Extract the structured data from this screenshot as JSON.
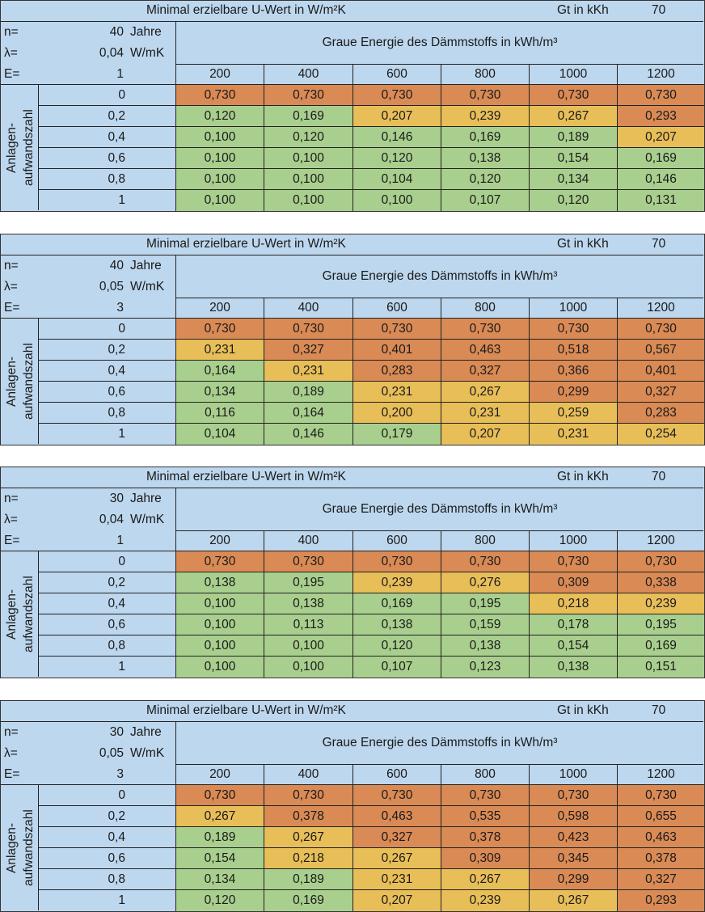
{
  "colors": {
    "O": "#d98a55",
    "Y": "#e8be59",
    "G": "#a9cf8e",
    "header": "#bdd7ee"
  },
  "tables": [
    {
      "title": "Minimal erzielbare U-Wert in W/m²K",
      "gt_label": "Gt in kKh",
      "gt_value": "70",
      "params": [
        {
          "label": "n=",
          "value": "40",
          "unit": "Jahre"
        },
        {
          "label": "λ=",
          "value": "0,04",
          "unit": "W/mK"
        },
        {
          "label": "E=",
          "value": "1",
          "unit": ""
        }
      ],
      "column_group": "Graue Energie des Dämmstoffs in kWh/m³",
      "row_group": [
        "Anlagen-",
        "aufwandszahl"
      ],
      "columns": [
        "200",
        "400",
        "600",
        "800",
        "1000",
        "1200"
      ],
      "rows": [
        {
          "label": "0",
          "values": [
            "0,730",
            "0,730",
            "0,730",
            "0,730",
            "0,730",
            "0,730"
          ],
          "colors": [
            "O",
            "O",
            "O",
            "O",
            "O",
            "O"
          ]
        },
        {
          "label": "0,2",
          "values": [
            "0,120",
            "0,169",
            "0,207",
            "0,239",
            "0,267",
            "0,293"
          ],
          "colors": [
            "G",
            "G",
            "Y",
            "Y",
            "Y",
            "O"
          ]
        },
        {
          "label": "0,4",
          "values": [
            "0,100",
            "0,120",
            "0,146",
            "0,169",
            "0,189",
            "0,207"
          ],
          "colors": [
            "G",
            "G",
            "G",
            "G",
            "G",
            "Y"
          ]
        },
        {
          "label": "0,6",
          "values": [
            "0,100",
            "0,100",
            "0,120",
            "0,138",
            "0,154",
            "0,169"
          ],
          "colors": [
            "G",
            "G",
            "G",
            "G",
            "G",
            "G"
          ]
        },
        {
          "label": "0,8",
          "values": [
            "0,100",
            "0,100",
            "0,104",
            "0,120",
            "0,134",
            "0,146"
          ],
          "colors": [
            "G",
            "G",
            "G",
            "G",
            "G",
            "G"
          ]
        },
        {
          "label": "1",
          "values": [
            "0,100",
            "0,100",
            "0,100",
            "0,107",
            "0,120",
            "0,131"
          ],
          "colors": [
            "G",
            "G",
            "G",
            "G",
            "G",
            "G"
          ]
        }
      ]
    },
    {
      "title": "Minimal erzielbare U-Wert in W/m²K",
      "gt_label": "Gt in kKh",
      "gt_value": "70",
      "params": [
        {
          "label": "n=",
          "value": "40",
          "unit": "Jahre"
        },
        {
          "label": "λ=",
          "value": "0,05",
          "unit": "W/mK"
        },
        {
          "label": "E=",
          "value": "3",
          "unit": ""
        }
      ],
      "column_group": "Graue Energie des Dämmstoffs in kWh/m³",
      "row_group": [
        "Anlagen-",
        "aufwandszahl"
      ],
      "columns": [
        "200",
        "400",
        "600",
        "800",
        "1000",
        "1200"
      ],
      "rows": [
        {
          "label": "0",
          "values": [
            "0,730",
            "0,730",
            "0,730",
            "0,730",
            "0,730",
            "0,730"
          ],
          "colors": [
            "O",
            "O",
            "O",
            "O",
            "O",
            "O"
          ]
        },
        {
          "label": "0,2",
          "values": [
            "0,231",
            "0,327",
            "0,401",
            "0,463",
            "0,518",
            "0,567"
          ],
          "colors": [
            "Y",
            "O",
            "O",
            "O",
            "O",
            "O"
          ]
        },
        {
          "label": "0,4",
          "values": [
            "0,164",
            "0,231",
            "0,283",
            "0,327",
            "0,366",
            "0,401"
          ],
          "colors": [
            "G",
            "Y",
            "O",
            "O",
            "O",
            "O"
          ]
        },
        {
          "label": "0,6",
          "values": [
            "0,134",
            "0,189",
            "0,231",
            "0,267",
            "0,299",
            "0,327"
          ],
          "colors": [
            "G",
            "G",
            "Y",
            "Y",
            "O",
            "O"
          ]
        },
        {
          "label": "0,8",
          "values": [
            "0,116",
            "0,164",
            "0,200",
            "0,231",
            "0,259",
            "0,283"
          ],
          "colors": [
            "G",
            "G",
            "Y",
            "Y",
            "Y",
            "O"
          ]
        },
        {
          "label": "1",
          "values": [
            "0,104",
            "0,146",
            "0,179",
            "0,207",
            "0,231",
            "0,254"
          ],
          "colors": [
            "G",
            "G",
            "G",
            "Y",
            "Y",
            "Y"
          ]
        }
      ]
    },
    {
      "title": "Minimal erzielbare U-Wert in W/m²K",
      "gt_label": "Gt in kKh",
      "gt_value": "70",
      "params": [
        {
          "label": "n=",
          "value": "30",
          "unit": "Jahre"
        },
        {
          "label": "λ=",
          "value": "0,04",
          "unit": "W/mK"
        },
        {
          "label": "E=",
          "value": "1",
          "unit": ""
        }
      ],
      "column_group": "Graue Energie des Dämmstoffs in kWh/m³",
      "row_group": [
        "Anlagen-",
        "aufwandszahl"
      ],
      "columns": [
        "200",
        "400",
        "600",
        "800",
        "1000",
        "1200"
      ],
      "rows": [
        {
          "label": "0",
          "values": [
            "0,730",
            "0,730",
            "0,730",
            "0,730",
            "0,730",
            "0,730"
          ],
          "colors": [
            "O",
            "O",
            "O",
            "O",
            "O",
            "O"
          ]
        },
        {
          "label": "0,2",
          "values": [
            "0,138",
            "0,195",
            "0,239",
            "0,276",
            "0,309",
            "0,338"
          ],
          "colors": [
            "G",
            "G",
            "Y",
            "Y",
            "O",
            "O"
          ]
        },
        {
          "label": "0,4",
          "values": [
            "0,100",
            "0,138",
            "0,169",
            "0,195",
            "0,218",
            "0,239"
          ],
          "colors": [
            "G",
            "G",
            "G",
            "G",
            "Y",
            "Y"
          ]
        },
        {
          "label": "0,6",
          "values": [
            "0,100",
            "0,113",
            "0,138",
            "0,159",
            "0,178",
            "0,195"
          ],
          "colors": [
            "G",
            "G",
            "G",
            "G",
            "G",
            "G"
          ]
        },
        {
          "label": "0,8",
          "values": [
            "0,100",
            "0,100",
            "0,120",
            "0,138",
            "0,154",
            "0,169"
          ],
          "colors": [
            "G",
            "G",
            "G",
            "G",
            "G",
            "G"
          ]
        },
        {
          "label": "1",
          "values": [
            "0,100",
            "0,100",
            "0,107",
            "0,123",
            "0,138",
            "0,151"
          ],
          "colors": [
            "G",
            "G",
            "G",
            "G",
            "G",
            "G"
          ]
        }
      ]
    },
    {
      "title": "Minimal erzielbare U-Wert in W/m²K",
      "gt_label": "Gt in kKh",
      "gt_value": "70",
      "params": [
        {
          "label": "n=",
          "value": "30",
          "unit": "Jahre"
        },
        {
          "label": "λ=",
          "value": "0,05",
          "unit": "W/mK"
        },
        {
          "label": "E=",
          "value": "3",
          "unit": ""
        }
      ],
      "column_group": "Graue Energie des Dämmstoffs in kWh/m³",
      "row_group": [
        "Anlagen-",
        "aufwandszahl"
      ],
      "columns": [
        "200",
        "400",
        "600",
        "800",
        "1000",
        "1200"
      ],
      "rows": [
        {
          "label": "0",
          "values": [
            "0,730",
            "0,730",
            "0,730",
            "0,730",
            "0,730",
            "0,730"
          ],
          "colors": [
            "O",
            "O",
            "O",
            "O",
            "O",
            "O"
          ]
        },
        {
          "label": "0,2",
          "values": [
            "0,267",
            "0,378",
            "0,463",
            "0,535",
            "0,598",
            "0,655"
          ],
          "colors": [
            "Y",
            "O",
            "O",
            "O",
            "O",
            "O"
          ]
        },
        {
          "label": "0,4",
          "values": [
            "0,189",
            "0,267",
            "0,327",
            "0,378",
            "0,423",
            "0,463"
          ],
          "colors": [
            "G",
            "Y",
            "O",
            "O",
            "O",
            "O"
          ]
        },
        {
          "label": "0,6",
          "values": [
            "0,154",
            "0,218",
            "0,267",
            "0,309",
            "0,345",
            "0,378"
          ],
          "colors": [
            "G",
            "Y",
            "Y",
            "O",
            "O",
            "O"
          ]
        },
        {
          "label": "0,8",
          "values": [
            "0,134",
            "0,189",
            "0,231",
            "0,267",
            "0,299",
            "0,327"
          ],
          "colors": [
            "G",
            "G",
            "Y",
            "Y",
            "O",
            "O"
          ]
        },
        {
          "label": "1",
          "values": [
            "0,120",
            "0,169",
            "0,207",
            "0,239",
            "0,267",
            "0,293"
          ],
          "colors": [
            "G",
            "G",
            "Y",
            "Y",
            "Y",
            "O"
          ]
        }
      ]
    }
  ]
}
